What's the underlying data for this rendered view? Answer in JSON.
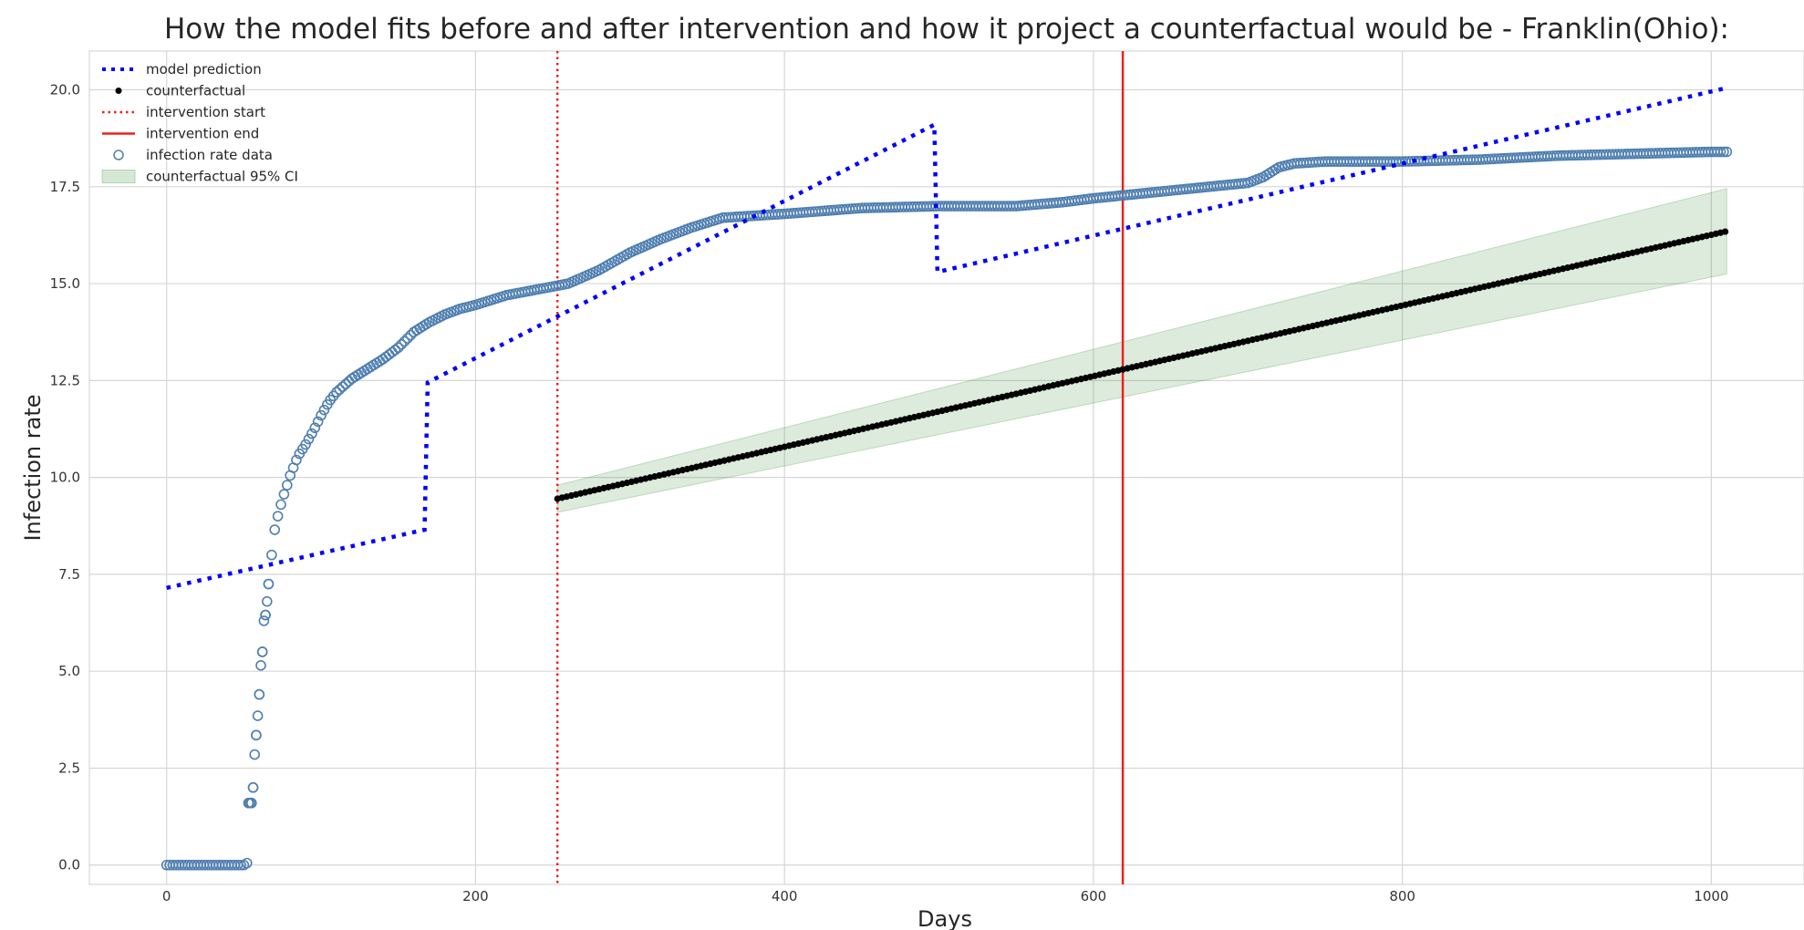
{
  "chart_data": {
    "type": "line",
    "title": "How the model fits before and after intervention and how it project a counterfactual would be - Franklin(Ohio):",
    "xlabel": "Days",
    "ylabel": "Infection rate",
    "xlim": [
      -50,
      1060
    ],
    "ylim": [
      -0.5,
      21.0
    ],
    "x_ticks": [
      0,
      200,
      400,
      600,
      800,
      1000
    ],
    "y_ticks": [
      0.0,
      2.5,
      5.0,
      7.5,
      10.0,
      12.5,
      15.0,
      17.5,
      20.0
    ],
    "x_tick_labels": [
      "0",
      "200",
      "400",
      "600",
      "800",
      "1000"
    ],
    "y_tick_labels": [
      "0.0",
      "2.5",
      "5.0",
      "7.5",
      "10.0",
      "12.5",
      "15.0",
      "17.5",
      "20.0"
    ],
    "grid": true,
    "legend_position": "top-left",
    "colors": {
      "model": "#0000ff",
      "data": "#4f7fb0",
      "counterfactual": "#000000",
      "intervention": "#e8231c",
      "ci_fill": "#2e8b2e"
    },
    "legend": [
      {
        "label": "model prediction",
        "kind": "dotted-line",
        "color": "#0000ff"
      },
      {
        "label": "counterfactual",
        "kind": "dot",
        "color": "#000000"
      },
      {
        "label": "intervention start",
        "kind": "dotted-line",
        "color": "#e8231c"
      },
      {
        "label": "intervention end",
        "kind": "solid-line",
        "color": "#e8231c"
      },
      {
        "label": "infection rate data",
        "kind": "hollow-circle",
        "color": "#4f7fb0"
      },
      {
        "label": "counterfactual 95% CI",
        "kind": "band",
        "color": "#2e8b2e"
      }
    ],
    "intervention_start": 253,
    "intervention_end": 619,
    "model_prediction": {
      "name": "model prediction",
      "segments": [
        {
          "x": [
            0,
            167
          ],
          "y": [
            7.15,
            8.65
          ]
        },
        {
          "x": [
            167,
            169
          ],
          "y": [
            8.65,
            12.45
          ]
        },
        {
          "x": [
            169,
            497
          ],
          "y": [
            12.45,
            19.1
          ]
        },
        {
          "x": [
            497,
            499
          ],
          "y": [
            19.1,
            15.3
          ]
        },
        {
          "x": [
            499,
            1010
          ],
          "y": [
            15.3,
            20.05
          ]
        }
      ]
    },
    "counterfactual": {
      "name": "counterfactual",
      "x": [
        253,
        1010
      ],
      "y": [
        9.45,
        16.35
      ]
    },
    "counterfactual_ci": {
      "name": "counterfactual 95% CI",
      "x": [
        253,
        1010
      ],
      "lower": [
        9.1,
        15.25
      ],
      "upper": [
        9.8,
        17.45
      ]
    },
    "infection_rate_data": {
      "name": "infection rate data",
      "x": [
        0,
        10,
        20,
        30,
        40,
        50,
        52,
        53,
        55,
        56,
        57,
        58,
        59,
        60,
        61,
        62,
        63,
        64,
        65,
        66,
        67,
        68,
        70,
        72,
        75,
        78,
        80,
        85,
        90,
        95,
        100,
        105,
        110,
        120,
        130,
        140,
        150,
        160,
        170,
        180,
        190,
        200,
        220,
        240,
        260,
        280,
        300,
        320,
        340,
        360,
        380,
        400,
        450,
        500,
        550,
        580,
        600,
        650,
        700,
        710,
        720,
        730,
        750,
        800,
        850,
        900,
        950,
        1000,
        1010
      ],
      "y": [
        0.0,
        0.0,
        0.0,
        0.0,
        0.0,
        0.0,
        0.05,
        1.6,
        1.6,
        2.0,
        2.85,
        3.35,
        3.85,
        4.4,
        5.15,
        5.5,
        6.3,
        6.45,
        6.8,
        7.25,
        7.8,
        8.0,
        8.65,
        9.0,
        9.45,
        9.8,
        10.05,
        10.55,
        10.85,
        11.2,
        11.6,
        11.95,
        12.2,
        12.55,
        12.8,
        13.05,
        13.35,
        13.75,
        14.0,
        14.2,
        14.35,
        14.45,
        14.7,
        14.85,
        15.0,
        15.35,
        15.8,
        16.15,
        16.45,
        16.7,
        16.75,
        16.8,
        16.95,
        17.0,
        17.0,
        17.1,
        17.2,
        17.4,
        17.6,
        17.75,
        18.0,
        18.1,
        18.15,
        18.15,
        18.2,
        18.3,
        18.35,
        18.4,
        18.4
      ]
    }
  }
}
